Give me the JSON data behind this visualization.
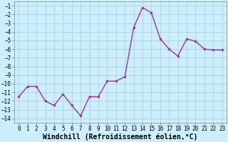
{
  "x": [
    0,
    1,
    2,
    3,
    4,
    5,
    6,
    7,
    8,
    9,
    10,
    11,
    12,
    13,
    14,
    15,
    16,
    17,
    18,
    19,
    20,
    21,
    22,
    23
  ],
  "y": [
    -11.5,
    -10.3,
    -10.3,
    -12.0,
    -12.5,
    -11.2,
    -12.5,
    -13.7,
    -11.5,
    -11.5,
    -9.7,
    -9.7,
    -9.2,
    -3.5,
    -1.2,
    -1.8,
    -4.8,
    -6.0,
    -6.8,
    -4.8,
    -5.1,
    -6.0,
    -6.1,
    -6.1
  ],
  "line_color": "#993399",
  "marker_color": "#993399",
  "bg_color": "#cceeff",
  "grid_color": "#aacccc",
  "xlabel": "Windchill (Refroidissement éolien,°C)",
  "xlim": [
    -0.5,
    23.5
  ],
  "ylim": [
    -14.5,
    -0.5
  ],
  "yticks": [
    -14,
    -13,
    -12,
    -11,
    -10,
    -9,
    -8,
    -7,
    -6,
    -5,
    -4,
    -3,
    -2,
    -1
  ],
  "xticks": [
    0,
    1,
    2,
    3,
    4,
    5,
    6,
    7,
    8,
    9,
    10,
    11,
    12,
    13,
    14,
    15,
    16,
    17,
    18,
    19,
    20,
    21,
    22,
    23
  ],
  "tick_fontsize": 5.5,
  "xlabel_fontsize": 7.0,
  "line_width": 1.0,
  "marker_size": 2.0
}
